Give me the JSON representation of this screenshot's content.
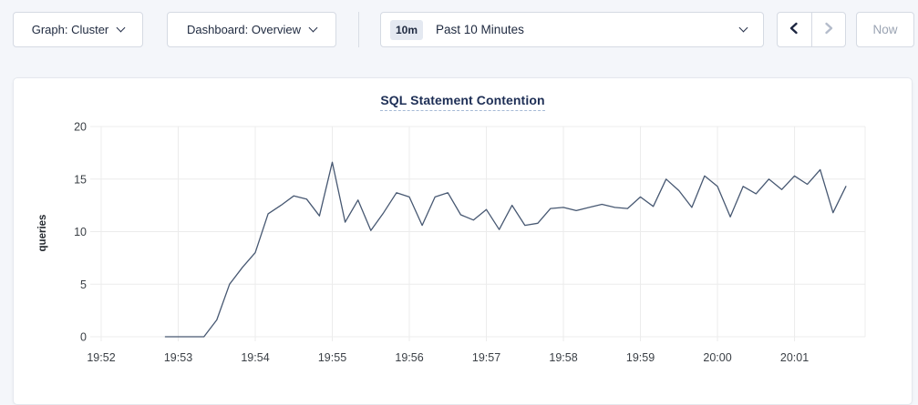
{
  "toolbar": {
    "graph_dropdown_label": "Graph: Cluster",
    "dashboard_dropdown_label": "Dashboard: Overview",
    "time_window_badge": "10m",
    "time_window_label": "Past 10 Minutes",
    "now_button_label": "Now"
  },
  "chart": {
    "title": "SQL Statement Contention",
    "ylabel": "queries"
  },
  "colors": {
    "page_bg": "#f4f6fa",
    "card_bg": "#ffffff",
    "control_border": "#d5dae3",
    "text_dark": "#1e293f",
    "text_disabled": "#9aa3b2",
    "title_navy": "#1d2e55",
    "title_underline": "#a6bad6",
    "badge_bg": "#e4e9f1",
    "line": "#475872",
    "grid": "#ececec",
    "tick_text": "#3b4046",
    "prev_icon": "#1c2540",
    "next_icon_disabled": "#b4bccb"
  },
  "chart_data": {
    "type": "line",
    "title": "SQL Statement Contention",
    "xlabel": "",
    "ylabel": "queries",
    "ylim": [
      0,
      20
    ],
    "y_ticks": [
      0,
      5,
      10,
      15,
      20
    ],
    "x_tick_labels": [
      "19:52",
      "19:53",
      "19:54",
      "19:55",
      "19:56",
      "19:57",
      "19:58",
      "19:59",
      "20:00",
      "20:01"
    ],
    "x_tick_offsets_sec": [
      0,
      60,
      120,
      180,
      240,
      300,
      360,
      420,
      480,
      540
    ],
    "x_domain_sec": [
      0,
      595
    ],
    "grid": true,
    "legend": "none",
    "series": [
      {
        "name": "queries",
        "start_time": "19:52:50",
        "start_offset_sec": 50,
        "interval_sec": 10,
        "values": [
          0,
          0,
          0,
          0,
          1.6,
          5,
          6.6,
          8,
          11.7,
          12.5,
          13.4,
          13.1,
          11.5,
          16.6,
          10.9,
          13,
          10.1,
          11.8,
          13.7,
          13.3,
          10.6,
          13.3,
          13.7,
          11.6,
          11.1,
          12.1,
          10.2,
          12.5,
          10.6,
          10.8,
          12.2,
          12.3,
          12,
          12.3,
          12.6,
          12.3,
          12.2,
          13.3,
          12.4,
          15,
          13.9,
          12.3,
          15.3,
          14.3,
          11.4,
          14.3,
          13.6,
          15,
          14,
          15.3,
          14.5,
          15.9,
          11.8,
          14.3
        ]
      }
    ]
  }
}
